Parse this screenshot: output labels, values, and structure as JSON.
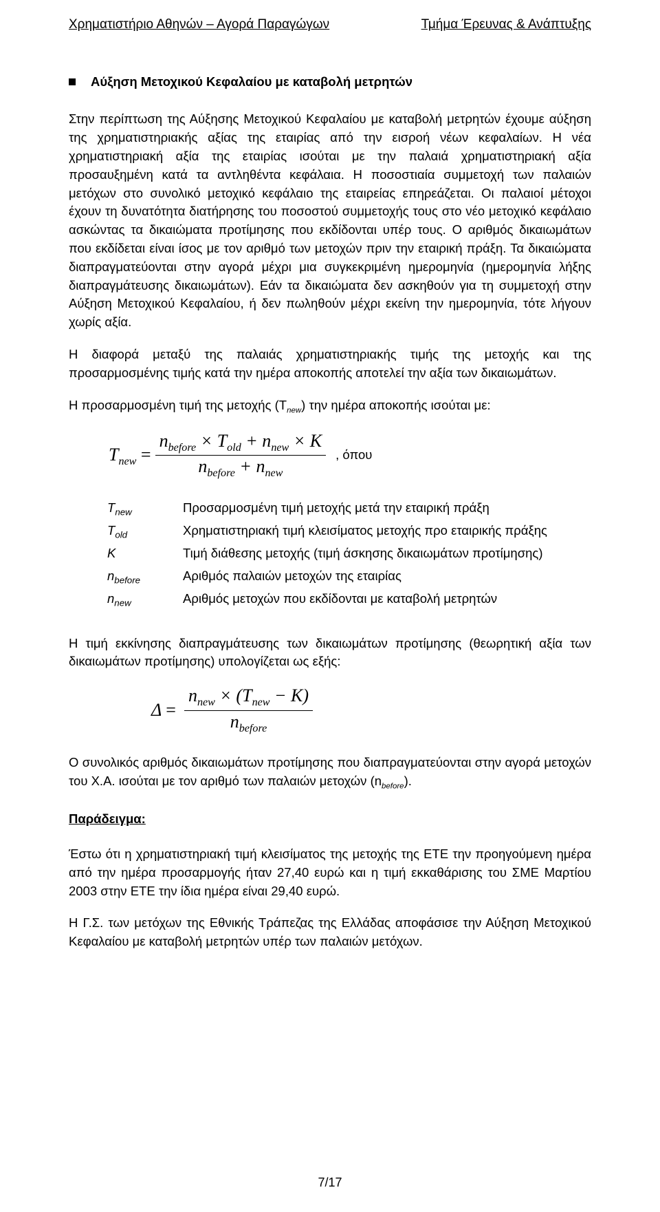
{
  "header": {
    "left": "Χρηματιστήριο Αθηνών – Αγορά Παραγώγων",
    "right": "Τμήμα Έρευνας & Ανάπτυξης"
  },
  "section_title": "Αύξηση Μετοχικού Κεφαλαίου με καταβολή μετρητών",
  "p1": "Στην περίπτωση της Αύξησης Μετοχικού Κεφαλαίου με καταβολή μετρητών έχουμε αύξηση της χρηματιστηριακής αξίας της εταιρίας από την εισροή νέων κεφαλαίων. Η νέα χρηματιστηριακή αξία της εταιρίας ισούται με την παλαιά χρηματιστηριακή αξία προσαυξημένη κατά τα αντληθέντα κεφάλαια. Η ποσοστιαία συμμετοχή των παλαιών μετόχων στο συνολικό μετοχικό κεφάλαιο της εταιρείας επηρεάζεται. Οι παλαιοί μέτοχοι έχουν τη δυνατότητα διατήρησης του ποσοστού συμμετοχής τους στο νέο μετοχικό κεφάλαιο ασκώντας τα δικαιώματα προτίμησης που εκδίδονται υπέρ τους. Ο αριθμός δικαιωμάτων που εκδίδεται είναι ίσος με τον αριθμό των μετοχών πριν την εταιρική πράξη. Τα δικαιώματα διαπραγματεύονται στην αγορά μέχρι μια συγκεκριμένη ημερομηνία (ημερομηνία λήξης διαπραγμάτευσης δικαιωμάτων). Εάν τα δικαιώματα δεν ασκηθούν για τη συμμετοχή στην Αύξηση Μετοχικού Κεφαλαίου, ή δεν πωληθούν μέχρι εκείνη την ημερομηνία, τότε λήγουν χωρίς αξία.",
  "p2": "Η διαφορά μεταξύ της παλαιάς χρηματιστηριακής τιμής της μετοχής και της προσαρμοσμένης τιμής κατά την ημέρα αποκοπής αποτελεί την αξία των δικαιωμάτων.",
  "p3_prefix": "Η προσαρμοσμένη τιμή της μετοχής (T",
  "p3_sub": "new",
  "p3_suffix": ") την ημέρα αποκοπής ισούται με:",
  "formula1": {
    "lhs_T": "T",
    "lhs_sub": "new",
    "eq": "=",
    "num_parts": {
      "n1": "n",
      "n1s": "before",
      "t1": "× T",
      "t1s": "old",
      "plus1": "+ n",
      "n2s": "new",
      "k": "× K"
    },
    "den_parts": {
      "n1": "n",
      "n1s": "before",
      "plus": "+ n",
      "n2s": "new"
    },
    "trail": ", όπου"
  },
  "defs": [
    {
      "sym": "T",
      "sub": "new",
      "txt": "Προσαρμοσμένη τιμή μετοχής μετά την εταιρική πράξη"
    },
    {
      "sym": "T",
      "sub": "old",
      "txt": "Χρηματιστηριακή τιμή κλεισίματος μετοχής προ εταιρικής πράξης"
    },
    {
      "sym": "K",
      "sub": "",
      "txt": "Τιμή διάθεσης μετοχής (τιμή άσκησης δικαιωμάτων προτίμησης)"
    },
    {
      "sym": "n",
      "sub": "before",
      "txt": "Αριθμός παλαιών μετοχών της εταιρίας"
    },
    {
      "sym": "n",
      "sub": "new",
      "txt": "Αριθμός μετοχών που εκδίδονται με καταβολή μετρητών"
    }
  ],
  "p4": "Η τιμή εκκίνησης διαπραγμάτευσης των δικαιωμάτων προτίμησης (θεωρητική αξία των δικαιωμάτων προτίμησης) υπολογίζεται ως εξής:",
  "formula2": {
    "delta": "Δ",
    "eq": "=",
    "num": {
      "n": "n",
      "ns": "new",
      "x": "× (T",
      "ts": "new",
      "mk": "− K)"
    },
    "den": {
      "n": "n",
      "ns": "before"
    }
  },
  "p5_a": "Ο συνολικός αριθμός δικαιωμάτων προτίμησης που διαπραγματεύονται στην αγορά μετοχών του Χ.Α. ισούται με τον αριθμό των παλαιών μετοχών (n",
  "p5_sub": "before",
  "p5_b": ").",
  "example_title": "Παράδειγμα:",
  "p6": "Έστω ότι η χρηματιστηριακή τιμή κλεισίματος της μετοχής της ΕΤΕ την προηγούμενη ημέρα από την ημέρα προσαρμογής ήταν 27,40 ευρώ και η τιμή εκκαθάρισης του ΣΜΕ Μαρτίου 2003 στην ΕΤΕ την ίδια ημέρα είναι 29,40 ευρώ.",
  "p7": "Η Γ.Σ. των μετόχων της Εθνικής Τράπεζας της Ελλάδας αποφάσισε την Αύξηση Μετοχικού Κεφαλαίου με καταβολή μετρητών υπέρ των παλαιών μετόχων.",
  "footer": "7/17"
}
